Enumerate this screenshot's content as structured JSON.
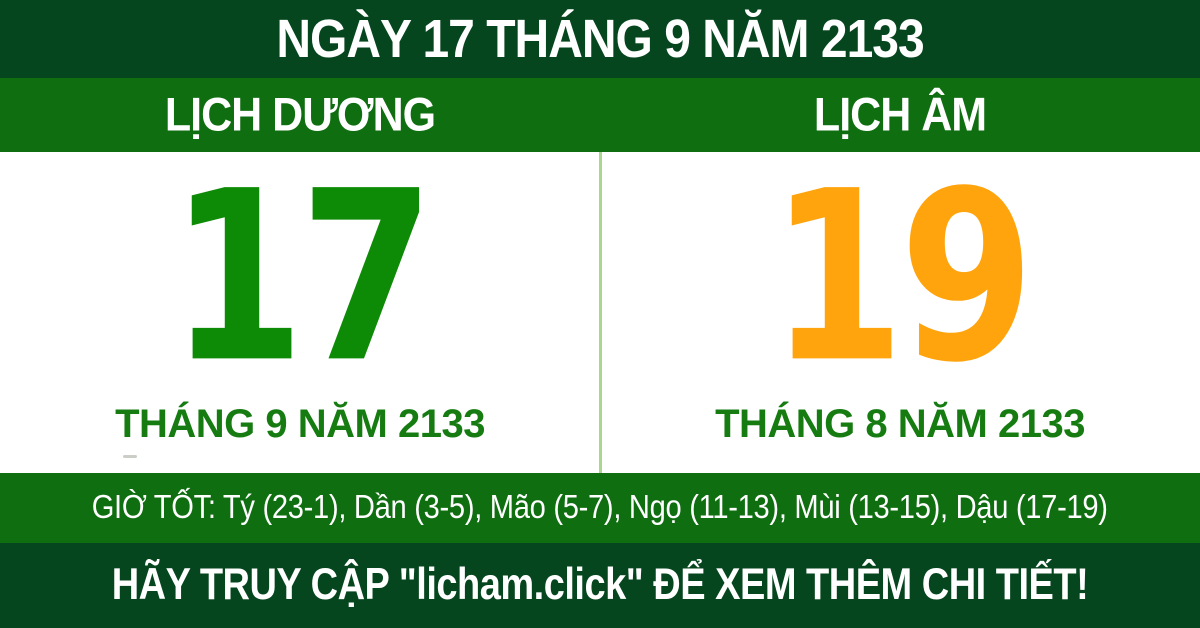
{
  "colors": {
    "dark_green": "#06461E",
    "band_green": "#0F6E10",
    "solar_day_green": "#0E8B06",
    "month_text_green": "#167C12",
    "lunar_day_orange": "#FFA40D",
    "divider_light_green": "#ABD68D",
    "white": "#FFFFFF"
  },
  "header": {
    "title": "NGÀY 17 THÁNG 9 NĂM 2133"
  },
  "calendar": {
    "solar": {
      "label": "LỊCH DƯƠNG",
      "day": "17",
      "month_year": "THÁNG 9 NĂM 2133"
    },
    "lunar": {
      "label": "LỊCH ÂM",
      "day": "19",
      "month_year": "THÁNG 8 NĂM 2133"
    }
  },
  "good_hours": {
    "text": "GIỜ TỐT: Tý (23-1), Dần (3-5), Mão (5-7), Ngọ (11-13), Mùi (13-15), Dậu (17-19)"
  },
  "footer": {
    "text": "HÃY TRUY CẬP \"licham.click\" ĐỂ XEM THÊM CHI TIẾT!"
  }
}
